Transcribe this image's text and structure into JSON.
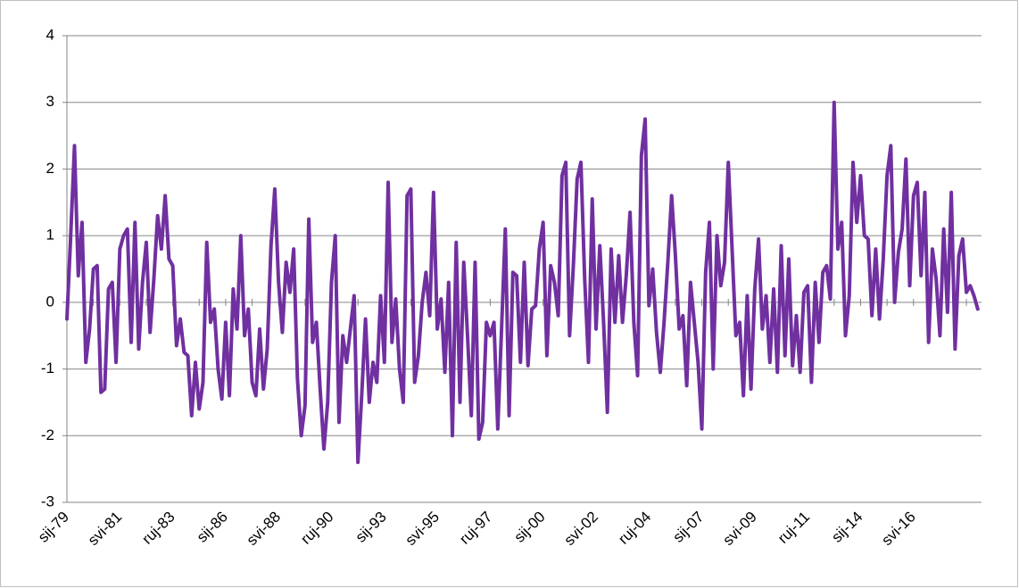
{
  "chart_data": {
    "type": "line",
    "categories": [
      "sij-79",
      null,
      null,
      null,
      null,
      null,
      null,
      null,
      null,
      null,
      null,
      null,
      null,
      null,
      "svi-81",
      null,
      null,
      null,
      null,
      null,
      null,
      null,
      null,
      null,
      null,
      null,
      null,
      null,
      "ruj-83",
      null,
      null,
      null,
      null,
      null,
      null,
      null,
      null,
      null,
      null,
      null,
      null,
      null,
      "sij-86",
      null,
      null,
      null,
      null,
      null,
      null,
      null,
      null,
      null,
      null,
      null,
      null,
      null,
      "svi-88",
      null,
      null,
      null,
      null,
      null,
      null,
      null,
      null,
      null,
      null,
      null,
      null,
      null,
      "ruj-90",
      null,
      null,
      null,
      null,
      null,
      null,
      null,
      null,
      null,
      null,
      null,
      null,
      null,
      "sij-93",
      null,
      null,
      null,
      null,
      null,
      null,
      null,
      null,
      null,
      null,
      null,
      null,
      null,
      "svi-95",
      null,
      null,
      null,
      null,
      null,
      null,
      null,
      null,
      null,
      null,
      null,
      null,
      null,
      "ruj-97",
      null,
      null,
      null,
      null,
      null,
      null,
      null,
      null,
      null,
      null,
      null,
      null,
      null,
      "sij-00",
      null,
      null,
      null,
      null,
      null,
      null,
      null,
      null,
      null,
      null,
      null,
      null,
      null,
      "svi-02",
      null,
      null,
      null,
      null,
      null,
      null,
      null,
      null,
      null,
      null,
      null,
      null,
      null,
      "ruj-04",
      null,
      null,
      null,
      null,
      null,
      null,
      null,
      null,
      null,
      null,
      null,
      null,
      null,
      "sij-07",
      null,
      null,
      null,
      null,
      null,
      null,
      null,
      null,
      null,
      null,
      null,
      null,
      null,
      "svi-09",
      null,
      null,
      null,
      null,
      null,
      null,
      null,
      null,
      null,
      null,
      null,
      null,
      null,
      "ruj-11",
      null,
      null,
      null,
      null,
      null,
      null,
      null,
      null,
      null,
      null,
      null,
      null,
      null,
      "sij-14",
      null,
      null,
      null,
      null,
      null,
      null,
      null,
      null,
      null,
      null,
      null,
      null,
      null,
      "svi-16",
      null,
      null,
      null,
      null,
      null,
      null,
      null,
      null,
      null,
      null,
      null,
      null,
      null,
      null,
      null,
      null,
      null
    ],
    "values": [
      -0.25,
      1.0,
      2.35,
      0.4,
      1.2,
      -0.9,
      -0.4,
      0.5,
      0.55,
      -1.35,
      -1.3,
      0.2,
      0.3,
      -0.9,
      0.8,
      1.0,
      1.1,
      -0.6,
      1.2,
      -0.7,
      0.3,
      0.9,
      -0.45,
      0.35,
      1.3,
      0.8,
      1.6,
      0.65,
      0.55,
      -0.65,
      -0.25,
      -0.75,
      -0.8,
      -1.7,
      -0.9,
      -1.6,
      -1.2,
      0.9,
      -0.3,
      -0.1,
      -1.0,
      -1.45,
      -0.3,
      -1.4,
      0.2,
      -0.4,
      1.0,
      -0.5,
      -0.1,
      -1.2,
      -1.4,
      -0.4,
      -1.3,
      -0.7,
      0.85,
      1.7,
      0.3,
      -0.45,
      0.6,
      0.15,
      0.8,
      -1.15,
      -2.0,
      -1.55,
      1.25,
      -0.6,
      -0.3,
      -1.3,
      -2.2,
      -1.5,
      0.3,
      1.0,
      -1.8,
      -0.5,
      -0.9,
      -0.4,
      0.1,
      -2.4,
      -1.4,
      -0.25,
      -1.5,
      -0.9,
      -1.2,
      0.1,
      -0.9,
      1.8,
      -0.6,
      0.05,
      -1.0,
      -1.5,
      1.6,
      1.7,
      -1.2,
      -0.8,
      0.0,
      0.45,
      -0.2,
      1.65,
      -0.4,
      0.05,
      -1.05,
      0.3,
      -2.0,
      0.9,
      -1.5,
      0.6,
      -0.5,
      -1.7,
      0.6,
      -2.05,
      -1.8,
      -0.3,
      -0.5,
      -0.3,
      -1.9,
      -0.4,
      1.1,
      -1.7,
      0.45,
      0.4,
      -0.9,
      0.6,
      -0.95,
      -0.1,
      -0.05,
      0.8,
      1.2,
      -0.8,
      0.55,
      0.3,
      -0.2,
      1.9,
      2.1,
      -0.5,
      0.55,
      1.85,
      2.1,
      0.35,
      -0.9,
      1.55,
      -0.4,
      0.85,
      -0.3,
      -1.65,
      0.8,
      -0.3,
      0.7,
      -0.3,
      0.4,
      1.35,
      -0.3,
      -1.1,
      2.2,
      2.75,
      -0.05,
      0.5,
      -0.45,
      -1.05,
      -0.3,
      0.6,
      1.6,
      0.7,
      -0.4,
      -0.2,
      -1.25,
      0.3,
      -0.3,
      -0.9,
      -1.9,
      0.45,
      1.2,
      -1.0,
      1.0,
      0.25,
      0.6,
      2.1,
      0.8,
      -0.5,
      -0.3,
      -1.4,
      0.1,
      -1.3,
      0.2,
      0.95,
      -0.4,
      0.1,
      -0.9,
      0.2,
      -1.05,
      0.85,
      -0.8,
      0.65,
      -0.95,
      -0.2,
      -1.05,
      0.15,
      0.25,
      -1.2,
      0.3,
      -0.6,
      0.45,
      0.55,
      0.05,
      3.0,
      0.8,
      1.2,
      -0.5,
      0.1,
      2.1,
      1.2,
      1.9,
      1.0,
      0.95,
      -0.2,
      0.8,
      -0.25,
      0.65,
      1.9,
      2.35,
      0.0,
      0.75,
      1.1,
      2.15,
      0.25,
      1.6,
      1.8,
      0.4,
      1.65,
      -0.6,
      0.8,
      0.35,
      -0.5,
      1.1,
      -0.15,
      1.65,
      -0.7,
      0.7,
      0.95,
      0.15,
      0.25,
      0.1,
      -0.1
    ],
    "color": "#7030a0",
    "ylim": [
      -3,
      4
    ],
    "yticks": [
      -3,
      -2,
      -1,
      0,
      1,
      2,
      3,
      4
    ],
    "grid": true
  }
}
